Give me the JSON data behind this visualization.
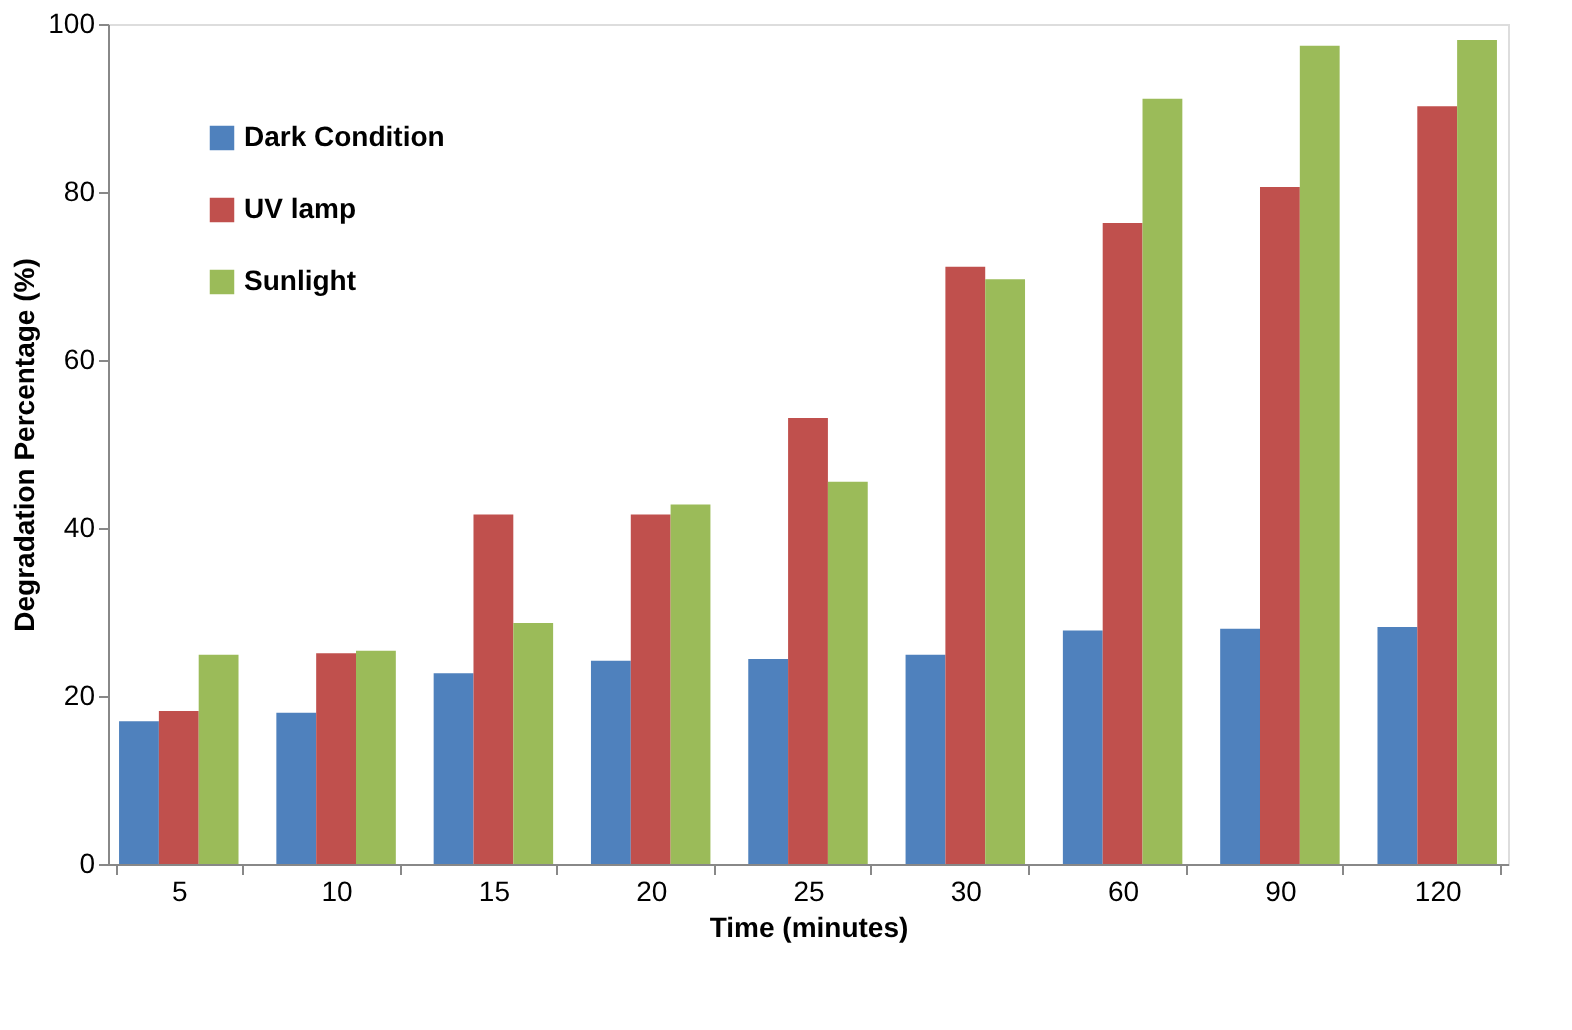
{
  "chart_data": {
    "type": "bar",
    "xlabel": "Time (minutes)",
    "ylabel": "Degradation Percentage (%)",
    "categories": [
      "5",
      "10",
      "15",
      "20",
      "25",
      "30",
      "60",
      "90",
      "120"
    ],
    "series": [
      {
        "name": "Dark Condition",
        "color": "#4f81bd",
        "values": [
          17,
          18,
          22.7,
          24.2,
          24.4,
          24.9,
          27.8,
          28,
          28.2
        ]
      },
      {
        "name": "UV lamp",
        "color": "#c0504d",
        "values": [
          18.2,
          25.1,
          41.6,
          41.6,
          53.1,
          71.1,
          76.3,
          80.6,
          90.2
        ]
      },
      {
        "name": "Sunlight",
        "color": "#9bbb59",
        "values": [
          24.9,
          25.4,
          28.7,
          42.8,
          45.5,
          69.6,
          91.1,
          97.4,
          98.1
        ]
      }
    ],
    "ylim": [
      0,
      100
    ],
    "yticks": [
      0,
      20,
      40,
      60,
      80,
      100
    ],
    "grid": false,
    "legend": "top left"
  }
}
